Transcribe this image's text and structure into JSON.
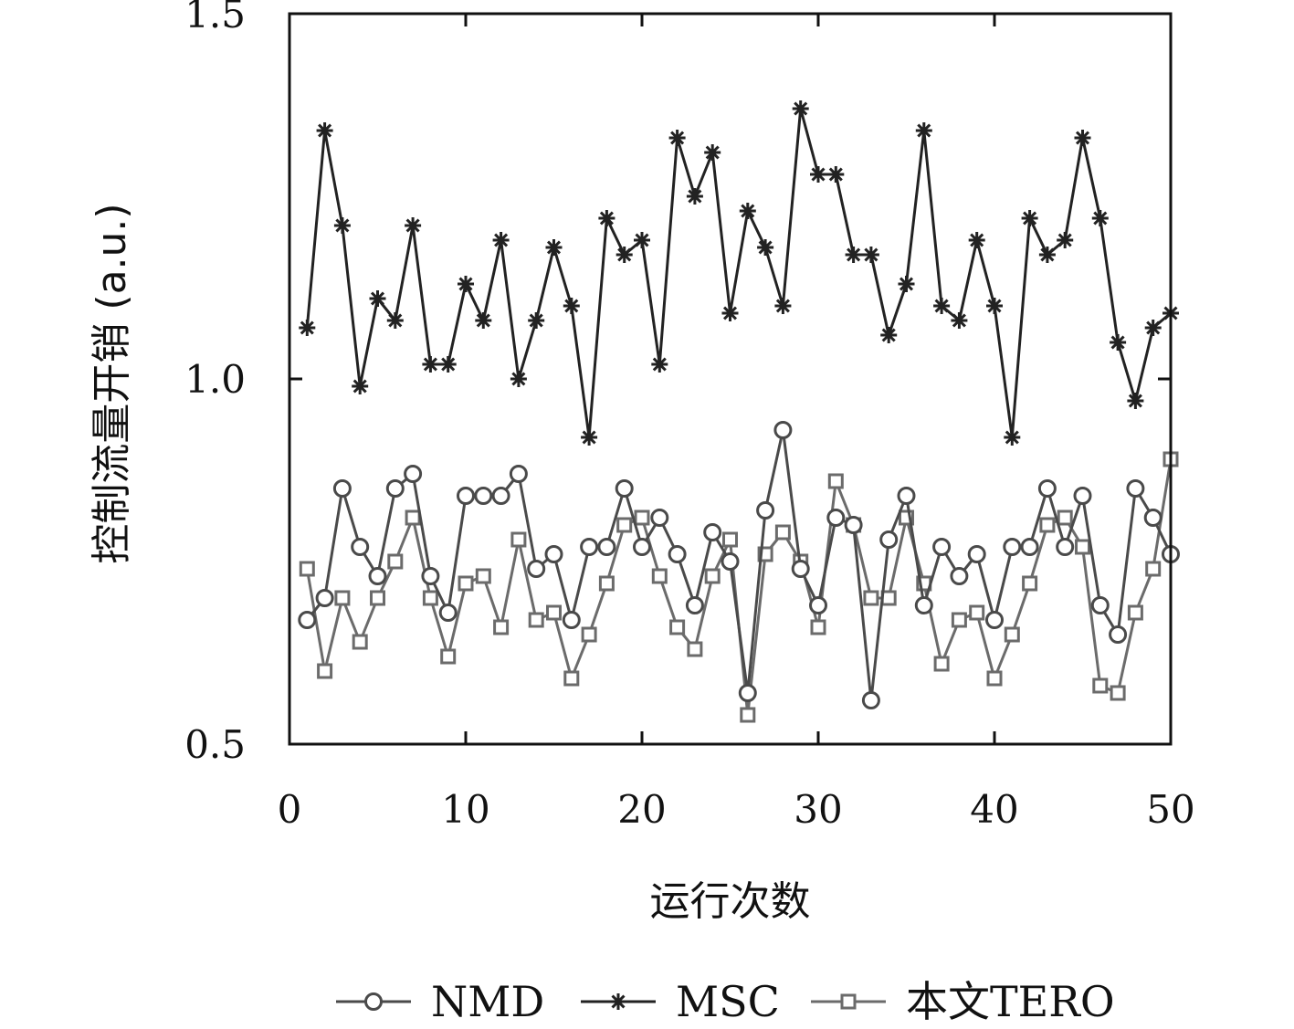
{
  "chart_data": {
    "type": "line",
    "xlabel": "运行次数",
    "ylabel": "控制流量开销 (a.u.)",
    "xlim": [
      0,
      50
    ],
    "ylim": [
      0.5,
      1.5
    ],
    "xticks": [
      "0",
      "10",
      "20",
      "30",
      "40",
      "50"
    ],
    "yticks": [
      "0.5",
      "1.0",
      "1.5"
    ],
    "legend_position": "bottom",
    "x": [
      1,
      2,
      3,
      4,
      5,
      6,
      7,
      8,
      9,
      10,
      11,
      12,
      13,
      14,
      15,
      16,
      17,
      18,
      19,
      20,
      21,
      22,
      23,
      24,
      25,
      26,
      27,
      28,
      29,
      30,
      31,
      32,
      33,
      34,
      35,
      36,
      37,
      38,
      39,
      40,
      41,
      42,
      43,
      44,
      45,
      46,
      47,
      48,
      49,
      50
    ],
    "series": [
      {
        "name": "NMD",
        "marker": "circle",
        "color": "#4a4a4a",
        "values": [
          0.67,
          0.7,
          0.85,
          0.77,
          0.73,
          0.85,
          0.87,
          0.73,
          0.68,
          0.84,
          0.84,
          0.84,
          0.87,
          0.74,
          0.76,
          0.67,
          0.77,
          0.77,
          0.85,
          0.77,
          0.81,
          0.76,
          0.69,
          0.79,
          0.75,
          0.57,
          0.82,
          0.93,
          0.74,
          0.69,
          0.81,
          0.8,
          0.56,
          0.78,
          0.84,
          0.69,
          0.77,
          0.73,
          0.76,
          0.67,
          0.77,
          0.77,
          0.85,
          0.77,
          0.84,
          0.69,
          0.65,
          0.85,
          0.81,
          0.76
        ]
      },
      {
        "name": "MSC",
        "marker": "star",
        "color": "#222222",
        "values": [
          1.07,
          1.34,
          1.21,
          0.99,
          1.11,
          1.08,
          1.21,
          1.02,
          1.02,
          1.13,
          1.08,
          1.19,
          1.0,
          1.08,
          1.18,
          1.1,
          0.92,
          1.22,
          1.17,
          1.19,
          1.02,
          1.33,
          1.25,
          1.31,
          1.09,
          1.23,
          1.18,
          1.1,
          1.37,
          1.28,
          1.28,
          1.17,
          1.17,
          1.06,
          1.13,
          1.34,
          1.1,
          1.08,
          1.19,
          1.1,
          0.92,
          1.22,
          1.17,
          1.19,
          1.33,
          1.22,
          1.05,
          0.97,
          1.07,
          1.09
        ]
      },
      {
        "name": "本文TERO",
        "marker": "square",
        "color": "#6b6b6b",
        "values": [
          0.74,
          0.6,
          0.7,
          0.64,
          0.7,
          0.75,
          0.81,
          0.7,
          0.62,
          0.72,
          0.73,
          0.66,
          0.78,
          0.67,
          0.68,
          0.59,
          0.65,
          0.72,
          0.8,
          0.81,
          0.73,
          0.66,
          0.63,
          0.73,
          0.78,
          0.54,
          0.76,
          0.79,
          0.75,
          0.66,
          0.86,
          0.8,
          0.7,
          0.7,
          0.81,
          0.72,
          0.61,
          0.67,
          0.68,
          0.59,
          0.65,
          0.72,
          0.8,
          0.81,
          0.77,
          0.58,
          0.57,
          0.68,
          0.74,
          0.89
        ]
      }
    ]
  }
}
